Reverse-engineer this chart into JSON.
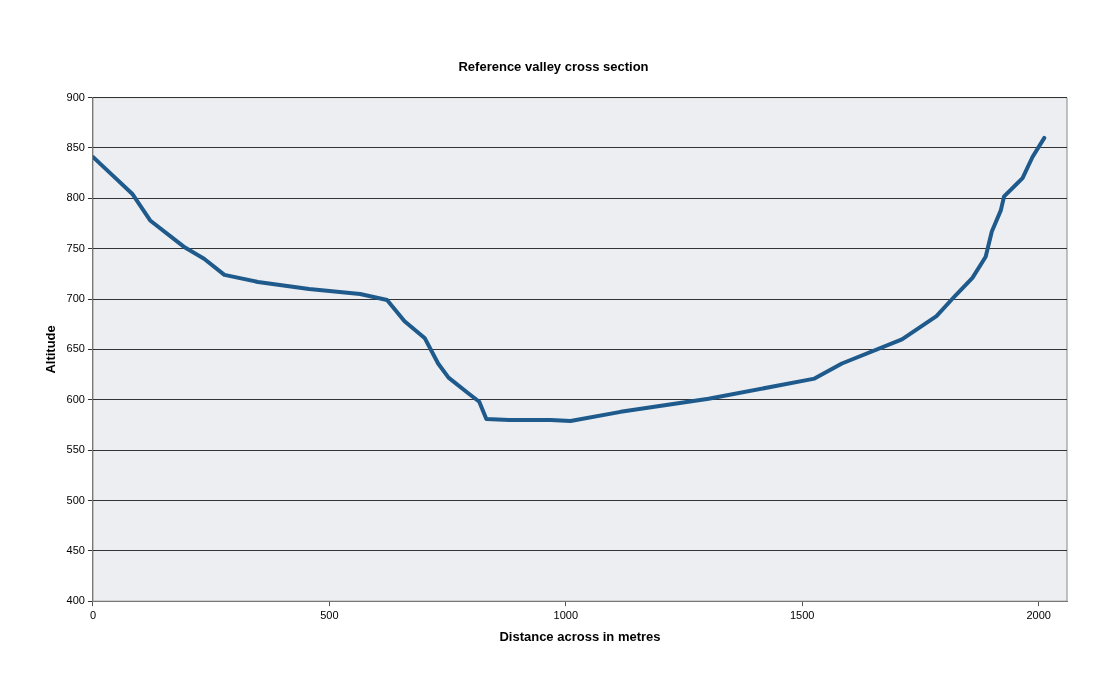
{
  "chart_data": {
    "type": "line",
    "title": "Reference valley cross section",
    "xlabel": "Distance across in metres",
    "ylabel": "Altitude",
    "xlim": [
      0,
      2060
    ],
    "xticks": [
      0,
      500,
      1000,
      1500,
      2000
    ],
    "ylim": [
      400,
      900
    ],
    "yticks": [
      400,
      450,
      500,
      550,
      600,
      650,
      700,
      750,
      800,
      850,
      900
    ],
    "grid": "y",
    "legend": false,
    "marker": "none",
    "line_style": "solid",
    "series": [
      {
        "color": "#1f5a8c",
        "x": [
          0,
          41,
          84,
          121,
          192,
          235,
          278,
          349,
          457,
          565,
          622,
          659,
          702,
          730,
          752,
          795,
          817,
          832,
          880,
          968,
          1010,
          1116,
          1302,
          1526,
          1584,
          1711,
          1784,
          1823,
          1860,
          1888,
          1901,
          1920,
          1927,
          1966,
          1987,
          2012
        ],
        "values": [
          841,
          823,
          804,
          778,
          752,
          740,
          724,
          717,
          710,
          705,
          699,
          678,
          661,
          636,
          622,
          606,
          598,
          581,
          580,
          580,
          579,
          588,
          601,
          621,
          636,
          660,
          683,
          703,
          721,
          742,
          767,
          788,
          802,
          820,
          841,
          860
        ]
      }
    ]
  }
}
